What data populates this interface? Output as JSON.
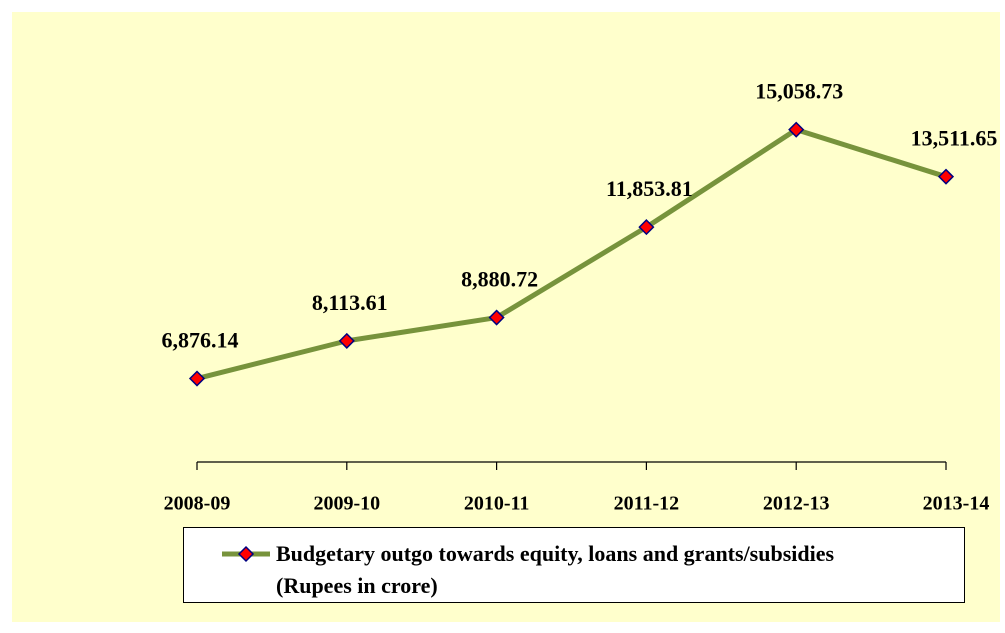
{
  "chart_data": {
    "type": "line",
    "categories": [
      "2008-09",
      "2009-10",
      "2010-11",
      "2011-12",
      "2012-13",
      "2013-14"
    ],
    "series": [
      {
        "name": "Budgetary outgo towards equity, loans and grants/subsidies\n(Rupees in crore)",
        "color": "#77933c",
        "marker_color": "#ff0000",
        "values": [
          6876.14,
          8113.61,
          8880.72,
          11853.81,
          15058.73,
          13511.65
        ],
        "value_labels": [
          "6,876.14",
          "8,113.61",
          "8,880.72",
          "11,853.81",
          "15,058.73",
          "13,511.65"
        ]
      }
    ],
    "ylim": [
      4000,
      16000
    ],
    "legend": "bottom"
  }
}
